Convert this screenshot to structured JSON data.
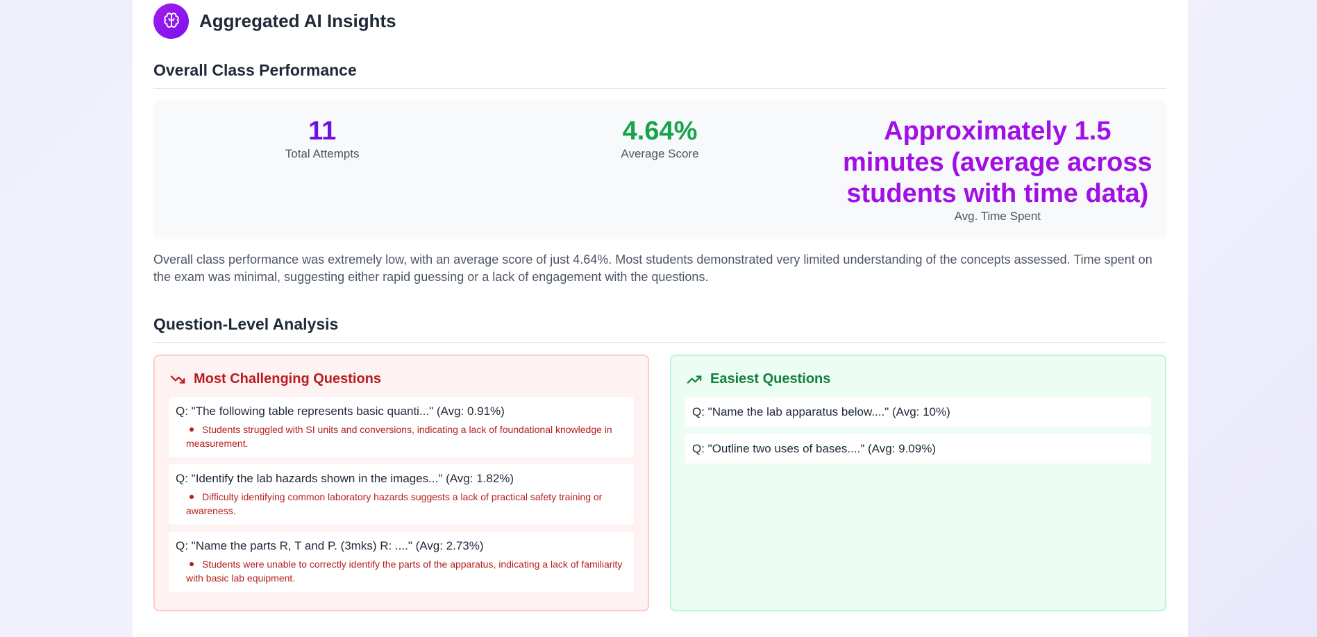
{
  "app": {
    "title": "Aggregated AI Insights",
    "icon": "brain-icon"
  },
  "performance": {
    "heading": "Overall Class Performance",
    "stats": [
      {
        "value": "11",
        "label": "Total Attempts",
        "color": "#6d10e6"
      },
      {
        "value": "4.64%",
        "label": "Average Score",
        "color": "#16a34a"
      },
      {
        "value": "Approximately 1.5 minutes (average across students with time data)",
        "label": "Avg. Time Spent",
        "color": "#a10fe6"
      }
    ],
    "summary": "Overall class performance was extremely low, with an average score of just 4.64%. Most students demonstrated very limited understanding of the concepts assessed. Time spent on the exam was minimal, suggesting either rapid guessing or a lack of engagement with the questions."
  },
  "questions": {
    "heading": "Question-Level Analysis",
    "challenging": {
      "title": "Most Challenging Questions",
      "icon": "trending-down-icon",
      "items": [
        {
          "question": "Q: \"The following table represents basic quanti...\" (Avg: 0.91%)",
          "note": "Students struggled with SI units and conversions, indicating a lack of foundational knowledge in measurement."
        },
        {
          "question": "Q: \"Identify the lab hazards shown in the images...\" (Avg: 1.82%)",
          "note": "Difficulty identifying common laboratory hazards suggests a lack of practical safety training or awareness."
        },
        {
          "question": "Q: \"Name the parts R, T and P. (3mks) R: ....\" (Avg: 2.73%)",
          "note": "Students were unable to correctly identify the parts of the apparatus, indicating a lack of familiarity with basic lab equipment."
        }
      ]
    },
    "easiest": {
      "title": "Easiest Questions",
      "icon": "trending-up-icon",
      "items": [
        {
          "question": "Q: \"Name the lab apparatus below....\" (Avg: 10%)"
        },
        {
          "question": "Q: \"Outline two uses of bases....\" (Avg: 9.09%)"
        }
      ]
    }
  },
  "colors": {
    "accent": "#7c10f0",
    "challenging": "#b91c1c",
    "easiest": "#15803d"
  }
}
